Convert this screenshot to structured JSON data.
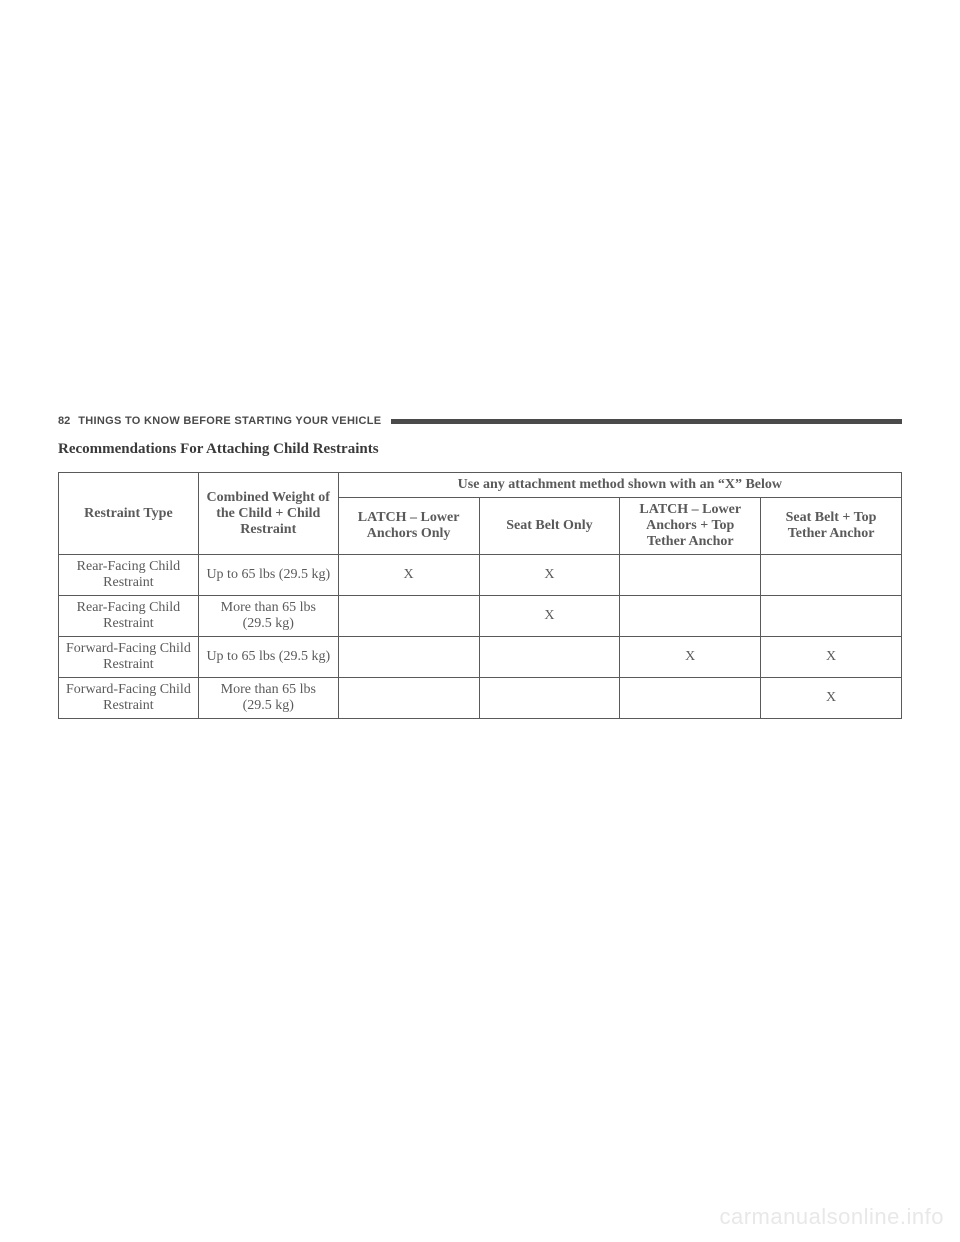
{
  "header": {
    "page_number": "82",
    "section_title": "THINGS TO KNOW BEFORE STARTING YOUR VEHICLE"
  },
  "title": "Recommendations For Attaching Child Restraints",
  "table": {
    "type": "table",
    "columns": {
      "restraint_type": "Restraint Type",
      "combined_weight": "Combined Weight of the Child + Child Restraint",
      "spanning_header": "Use any attachment method shown with an “X” Below",
      "latch_lower": "LATCH – Lower Anchors Only",
      "seat_belt_only": "Seat Belt Only",
      "latch_tether": "LATCH – Lower Anchors + Top Tether Anchor",
      "seat_belt_tether": "Seat Belt + Top Tether Anchor"
    },
    "rows": [
      {
        "restraint_type": "Rear-Facing Child Restraint",
        "weight": "Up to 65 lbs (29.5 kg)",
        "latch_lower": "X",
        "seat_belt_only": "X",
        "latch_tether": "",
        "seat_belt_tether": ""
      },
      {
        "restraint_type": "Rear-Facing Child Restraint",
        "weight": "More than 65 lbs (29.5 kg)",
        "latch_lower": "",
        "seat_belt_only": "X",
        "latch_tether": "",
        "seat_belt_tether": ""
      },
      {
        "restraint_type": "Forward-Facing Child Restraint",
        "weight": "Up to 65 lbs (29.5 kg)",
        "latch_lower": "",
        "seat_belt_only": "",
        "latch_tether": "X",
        "seat_belt_tether": "X"
      },
      {
        "restraint_type": "Forward-Facing Child Restraint",
        "weight": "More than 65 lbs (29.5 kg)",
        "latch_lower": "",
        "seat_belt_only": "",
        "latch_tether": "",
        "seat_belt_tether": "X"
      }
    ],
    "border_color": "#5a5a5a",
    "text_color": "#5a5a5a",
    "header_font_weight": "bold",
    "font_size": 14,
    "column_widths": {
      "restraint_type": 140,
      "weight": 140,
      "method": 141
    }
  },
  "watermark": "carmanualsonline.info",
  "colors": {
    "background": "#ffffff",
    "text_primary": "#5a5a5a",
    "text_header": "#4a4a4a",
    "title": "#3a3a3a",
    "watermark": "#e8e8e8",
    "header_rule": "#4a4a4a"
  }
}
